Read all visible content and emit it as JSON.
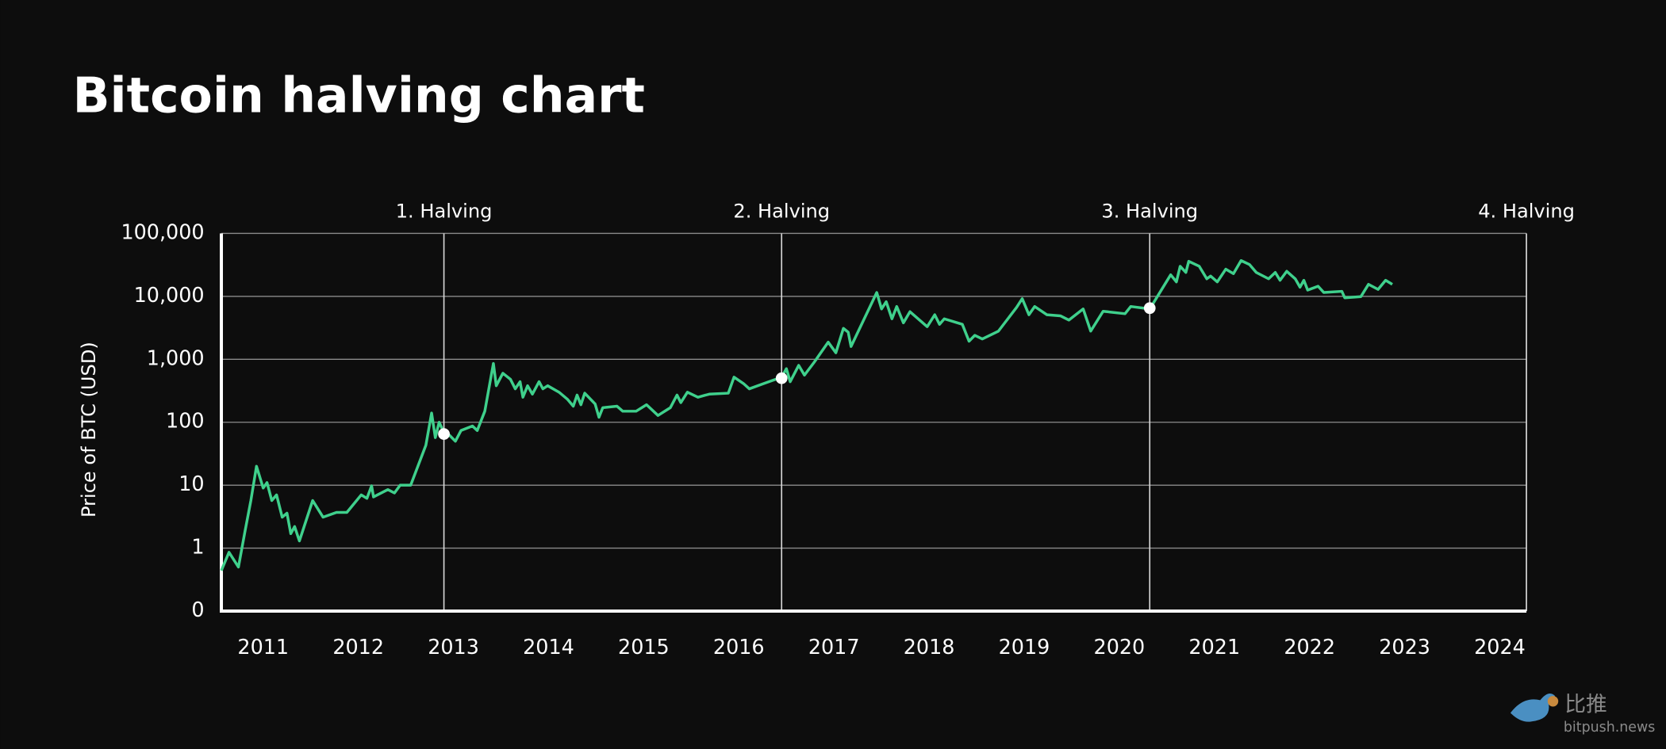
{
  "chart_data": {
    "type": "line",
    "title": "Bitcoin halving chart",
    "y_label": "Price of BTC (USD)",
    "log_scale": true,
    "grid": true,
    "color": "#3fd08c",
    "xlim": [
      2010.56,
      2024.28
    ],
    "xticks": [
      2011,
      2012,
      2013,
      2014,
      2015,
      2016,
      2017,
      2018,
      2019,
      2020,
      2021,
      2022,
      2023,
      2024
    ],
    "ylim": [
      0.1,
      100000
    ],
    "yticks": [
      {
        "value": 0.1,
        "label": "0"
      },
      1,
      10,
      100,
      {
        "value": 1000,
        "label": "1,000"
      },
      {
        "value": 10000,
        "label": "10,000"
      },
      {
        "value": 100000,
        "label": "100,000"
      }
    ],
    "halvings": [
      {
        "label": "1. Halving",
        "x": 2012.9,
        "price": 65
      },
      {
        "label": "2. Halving",
        "x": 2016.45,
        "price": 500
      },
      {
        "label": "3. Halving",
        "x": 2020.32,
        "price": 6500
      },
      {
        "label": "4. Halving",
        "x": 2024.28
      }
    ],
    "x": [
      2010.56,
      2010.64,
      2010.74,
      2010.81,
      2010.87,
      2010.93,
      2011.0,
      2011.04,
      2011.09,
      2011.14,
      2011.2,
      2011.25,
      2011.29,
      2011.33,
      2011.38,
      2011.52,
      2011.63,
      2011.77,
      2011.88,
      2012.03,
      2012.09,
      2012.14,
      2012.16,
      2012.31,
      2012.38,
      2012.44,
      2012.55,
      2012.71,
      2012.77,
      2012.81,
      2012.85,
      2012.9,
      2012.95,
      2013.02,
      2013.08,
      2013.2,
      2013.25,
      2013.33,
      2013.42,
      2013.45,
      2013.52,
      2013.6,
      2013.65,
      2013.7,
      2013.73,
      2013.78,
      2013.83,
      2013.9,
      2013.94,
      2013.99,
      2014.11,
      2014.2,
      2014.26,
      2014.3,
      2014.34,
      2014.38,
      2014.49,
      2014.53,
      2014.57,
      2014.72,
      2014.78,
      2014.92,
      2015.03,
      2015.15,
      2015.28,
      2015.35,
      2015.39,
      2015.46,
      2015.57,
      2015.69,
      2015.89,
      2015.95,
      2016.05,
      2016.11,
      2016.26,
      2016.45,
      2016.5,
      2016.54,
      2016.63,
      2016.69,
      2016.79,
      2016.94,
      2017.02,
      2017.1,
      2017.15,
      2017.18,
      2017.45,
      2017.5,
      2017.55,
      2017.61,
      2017.66,
      2017.73,
      2017.8,
      2017.98,
      2018.06,
      2018.11,
      2018.16,
      2018.35,
      2018.42,
      2018.48,
      2018.56,
      2018.73,
      2018.92,
      2018.98,
      2019.05,
      2019.11,
      2019.24,
      2019.38,
      2019.47,
      2019.62,
      2019.7,
      2019.83,
      2020.06,
      2020.12,
      2020.32,
      2020.54,
      2020.6,
      2020.64,
      2020.7,
      2020.73,
      2020.84,
      2020.92,
      2020.96,
      2021.03,
      2021.12,
      2021.2,
      2021.28,
      2021.37,
      2021.44,
      2021.57,
      2021.64,
      2021.69,
      2021.76,
      2021.85,
      2021.9,
      2021.94,
      2021.98,
      2022.09,
      2022.15,
      2022.34,
      2022.37,
      2022.54,
      2022.62,
      2022.72,
      2022.8,
      2022.87
    ],
    "values": [
      0.44,
      0.86,
      0.5,
      1.9,
      5.7,
      20,
      9,
      11,
      5.7,
      7,
      3.1,
      3.6,
      1.7,
      2.2,
      1.3,
      5.7,
      3.1,
      3.7,
      3.7,
      7,
      6.2,
      9.8,
      6.5,
      8.5,
      7.5,
      10,
      10,
      43,
      140,
      57,
      100,
      69,
      64,
      50,
      74,
      87,
      74,
      150,
      860,
      380,
      600,
      480,
      340,
      440,
      250,
      380,
      280,
      440,
      340,
      380,
      300,
      230,
      180,
      270,
      190,
      290,
      195,
      120,
      170,
      180,
      150,
      150,
      190,
      128,
      170,
      270,
      205,
      300,
      250,
      280,
      290,
      520,
      410,
      340,
      410,
      520,
      710,
      440,
      800,
      560,
      890,
      1870,
      1270,
      3100,
      2700,
      1600,
      11500,
      6300,
      8200,
      4400,
      6900,
      3800,
      5700,
      3300,
      5100,
      3600,
      4400,
      3600,
      1940,
      2400,
      2100,
      2800,
      6700,
      9200,
      5100,
      6900,
      5100,
      4900,
      4200,
      6300,
      2800,
      5800,
      5300,
      6900,
      6300,
      22000,
      17000,
      30000,
      24000,
      36000,
      30000,
      19000,
      21000,
      17000,
      27000,
      23000,
      37000,
      32000,
      24000,
      19000,
      24000,
      18000,
      25000,
      19000,
      14000,
      18000,
      12600,
      14500,
      11500,
      12000,
      9500,
      9900,
      15500,
      12900,
      18000,
      15500
    ]
  },
  "watermark": {
    "brand": "比推",
    "site": "bitpush.news"
  }
}
